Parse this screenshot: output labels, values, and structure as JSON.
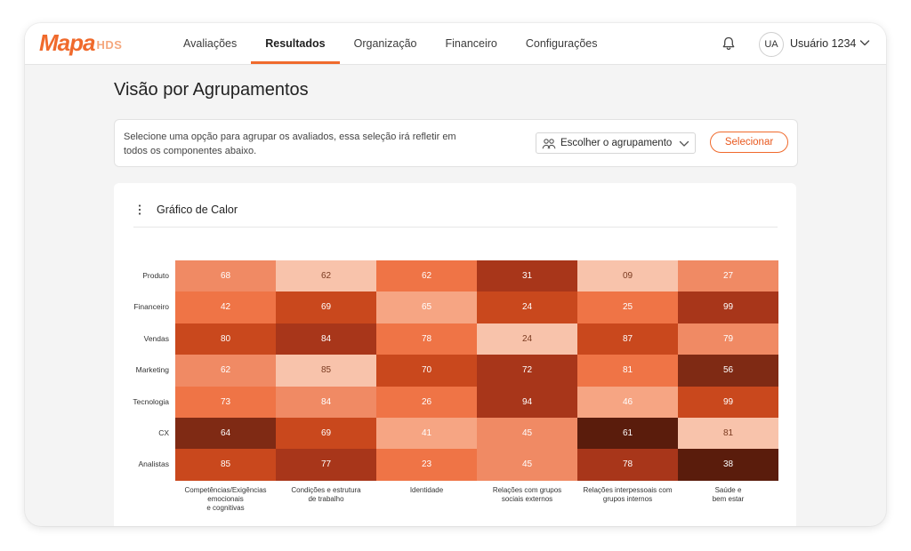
{
  "app": {
    "logo_text": "Mapa",
    "logo_sub": "HDS"
  },
  "nav": {
    "items": [
      {
        "label": "Avaliações",
        "active": false
      },
      {
        "label": "Resultados",
        "active": true
      },
      {
        "label": "Organização",
        "active": false
      },
      {
        "label": "Financeiro",
        "active": false
      },
      {
        "label": "Configurações",
        "active": false
      }
    ]
  },
  "user": {
    "initials": "UA",
    "name": "Usuário 1234"
  },
  "page": {
    "title": "Visão por Agrupamentos"
  },
  "grouping": {
    "description": "Selecione uma opção para agrupar os avaliados, essa seleção irá refletir em todos os componentes abaixo.",
    "select_label": "Escolher o agrupamento",
    "button_label": "Selecionar"
  },
  "heatmap_card": {
    "title": "Gráfico de Calor"
  },
  "colors": {
    "accent": "#f06a2c"
  },
  "chart_data": {
    "type": "heatmap",
    "rows": [
      "Produto",
      "Financeiro",
      "Vendas",
      "Marketing",
      "Tecnologia",
      "CX",
      "Analistas"
    ],
    "columns": [
      "Competências/Exigências\nemocionais\ne cognitivas",
      "Condições e estrutura\nde trabalho",
      "Identidade",
      "Relações com grupos\nsociais externos",
      "Relações interpessoais com\ngrupos internos",
      "Saúde e\nbem estar"
    ],
    "values": [
      [
        68,
        62,
        62,
        31,
        9,
        27
      ],
      [
        42,
        69,
        65,
        24,
        25,
        99
      ],
      [
        80,
        84,
        78,
        24,
        87,
        79
      ],
      [
        62,
        85,
        70,
        72,
        81,
        56
      ],
      [
        73,
        84,
        26,
        94,
        46,
        99
      ],
      [
        64,
        69,
        41,
        45,
        61,
        81
      ],
      [
        85,
        77,
        23,
        45,
        78,
        38
      ]
    ],
    "labels": [
      [
        "68",
        "62",
        "62",
        "31",
        "09",
        "27"
      ],
      [
        "42",
        "69",
        "65",
        "24",
        "25",
        "99"
      ],
      [
        "80",
        "84",
        "78",
        "24",
        "87",
        "79"
      ],
      [
        "62",
        "85",
        "70",
        "72",
        "81",
        "56"
      ],
      [
        "73",
        "84",
        "26",
        "94",
        "46",
        "99"
      ],
      [
        "64",
        "69",
        "41",
        "45",
        "61",
        "81"
      ],
      [
        "85",
        "77",
        "23",
        "45",
        "78",
        "38"
      ]
    ],
    "cell_colors": [
      [
        "#f08a64",
        "#f8c3ab",
        "#ef7446",
        "#a8361a",
        "#f8c3ab",
        "#f08a64"
      ],
      [
        "#ef7446",
        "#c9481d",
        "#f6a583",
        "#c9481d",
        "#ef7446",
        "#a8361a"
      ],
      [
        "#c9481d",
        "#a8361a",
        "#ef7446",
        "#f8c3ab",
        "#c9481d",
        "#f08a64"
      ],
      [
        "#f08a64",
        "#f8c3ab",
        "#c9481d",
        "#a8361a",
        "#ef7446",
        "#7f2a14"
      ],
      [
        "#ef7446",
        "#f08a64",
        "#ef7446",
        "#a8361a",
        "#f6a583",
        "#c9481d"
      ],
      [
        "#7f2a14",
        "#c9481d",
        "#f6a583",
        "#f08a64",
        "#5a1c0c",
        "#f8c3ab"
      ],
      [
        "#c9481d",
        "#a8361a",
        "#ef7446",
        "#f08a64",
        "#a8361a",
        "#5a1c0c"
      ]
    ]
  }
}
